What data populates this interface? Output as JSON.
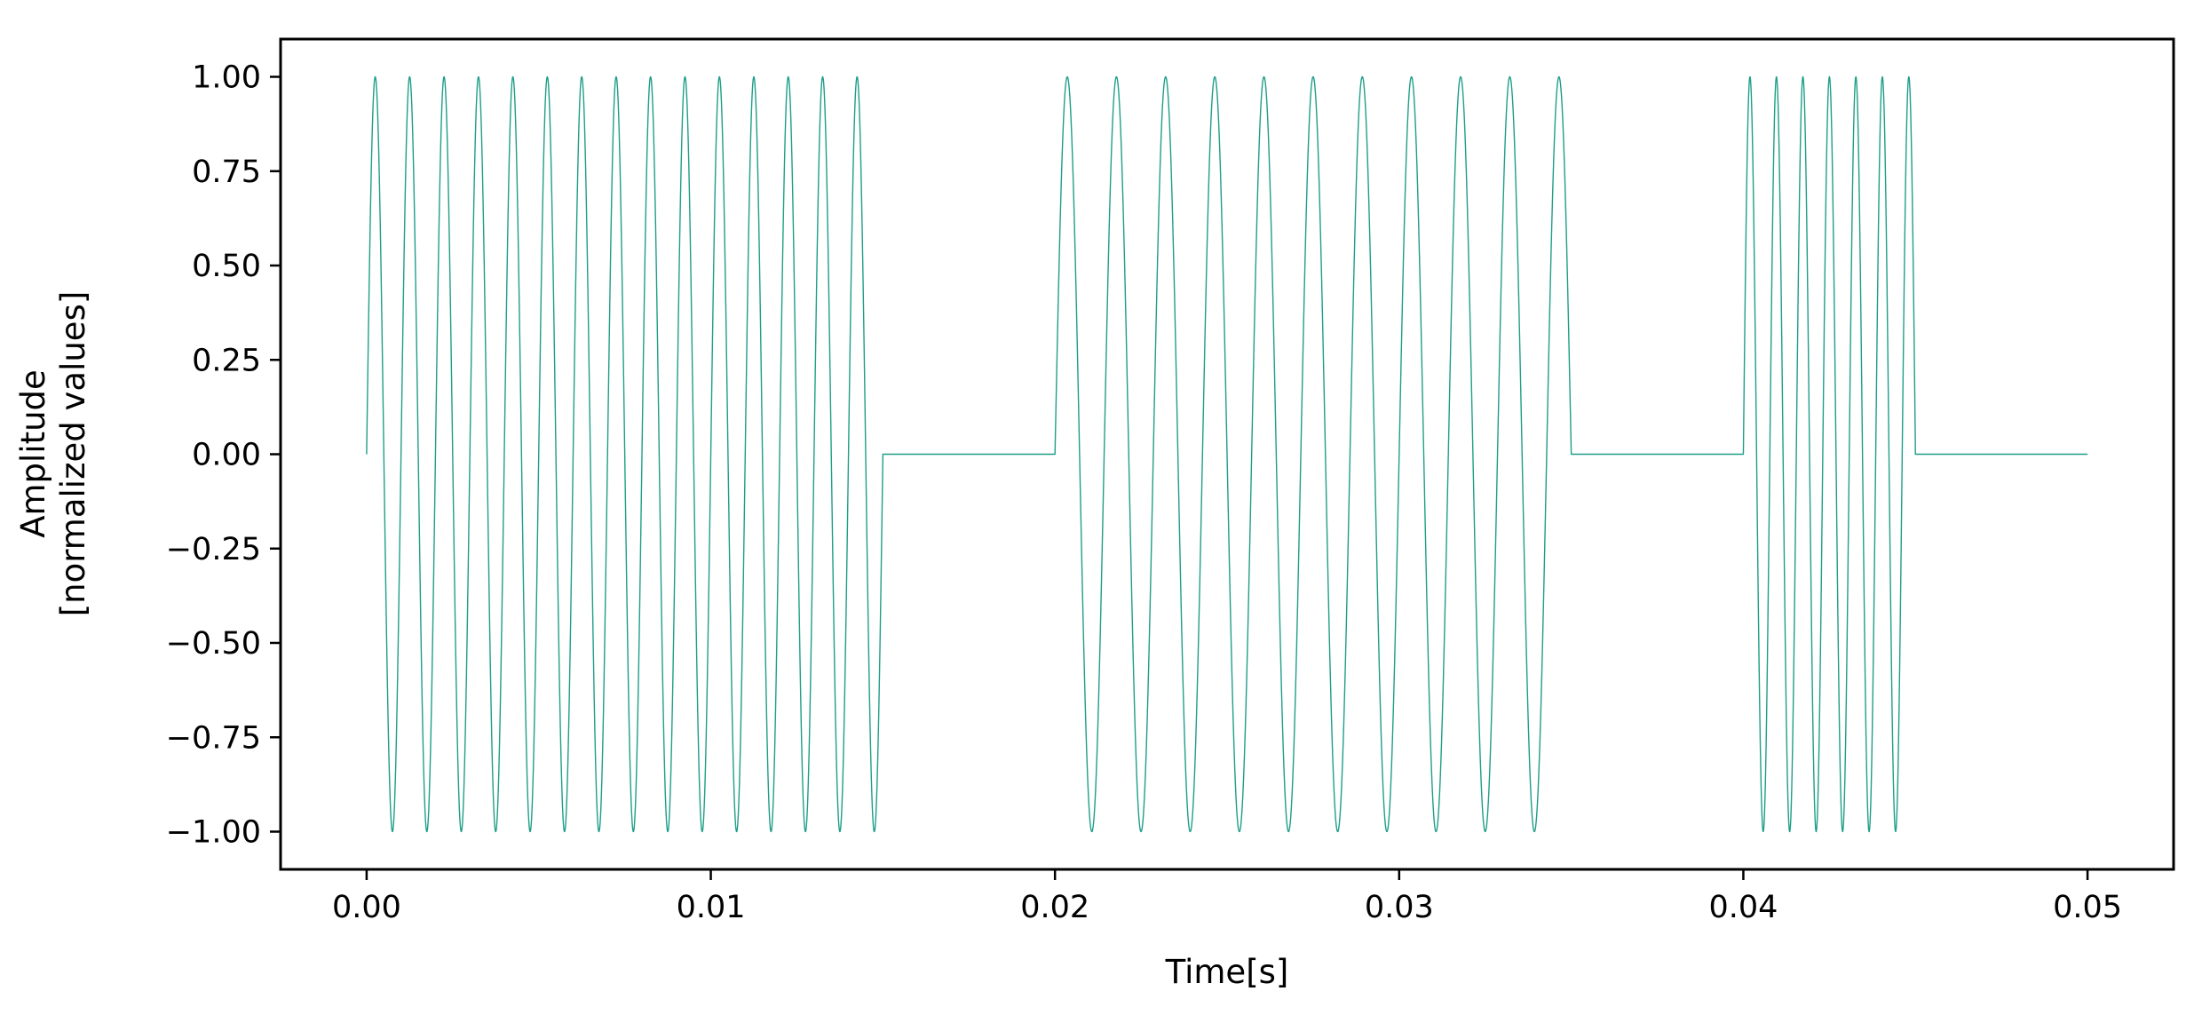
{
  "chart_data": {
    "type": "line",
    "title": "",
    "xlabel": "Time[s]",
    "ylabel_lines": [
      "Amplitude",
      "[normalized values]"
    ],
    "xlim": [
      -0.0025,
      0.0525
    ],
    "ylim": [
      -1.1,
      1.1
    ],
    "x_ticks": [
      {
        "value": 0.0,
        "label": "0.00"
      },
      {
        "value": 0.01,
        "label": "0.01"
      },
      {
        "value": 0.02,
        "label": "0.02"
      },
      {
        "value": 0.03,
        "label": "0.03"
      },
      {
        "value": 0.04,
        "label": "0.04"
      },
      {
        "value": 0.05,
        "label": "0.05"
      }
    ],
    "y_ticks": [
      {
        "value": 1.0,
        "label": "1.00"
      },
      {
        "value": 0.75,
        "label": "0.75"
      },
      {
        "value": 0.5,
        "label": "0.50"
      },
      {
        "value": 0.25,
        "label": "0.25"
      },
      {
        "value": 0.0,
        "label": "0.00"
      },
      {
        "value": -0.25,
        "label": "−0.25"
      },
      {
        "value": -0.5,
        "label": "−0.50"
      },
      {
        "value": -0.75,
        "label": "−0.75"
      },
      {
        "value": -1.0,
        "label": "−1.00"
      }
    ],
    "grid": false,
    "series": [
      {
        "color": "#1f9e89",
        "signal": "sine bursts separated by silence",
        "bursts": [
          {
            "start": 0.0,
            "end": 0.015,
            "frequency_hz": 1000
          },
          {
            "start": 0.02,
            "end": 0.035,
            "frequency_hz": 700
          },
          {
            "start": 0.04,
            "end": 0.045,
            "frequency_hz": 1300
          }
        ],
        "x_end": 0.05,
        "amplitude": 1.0
      }
    ]
  }
}
